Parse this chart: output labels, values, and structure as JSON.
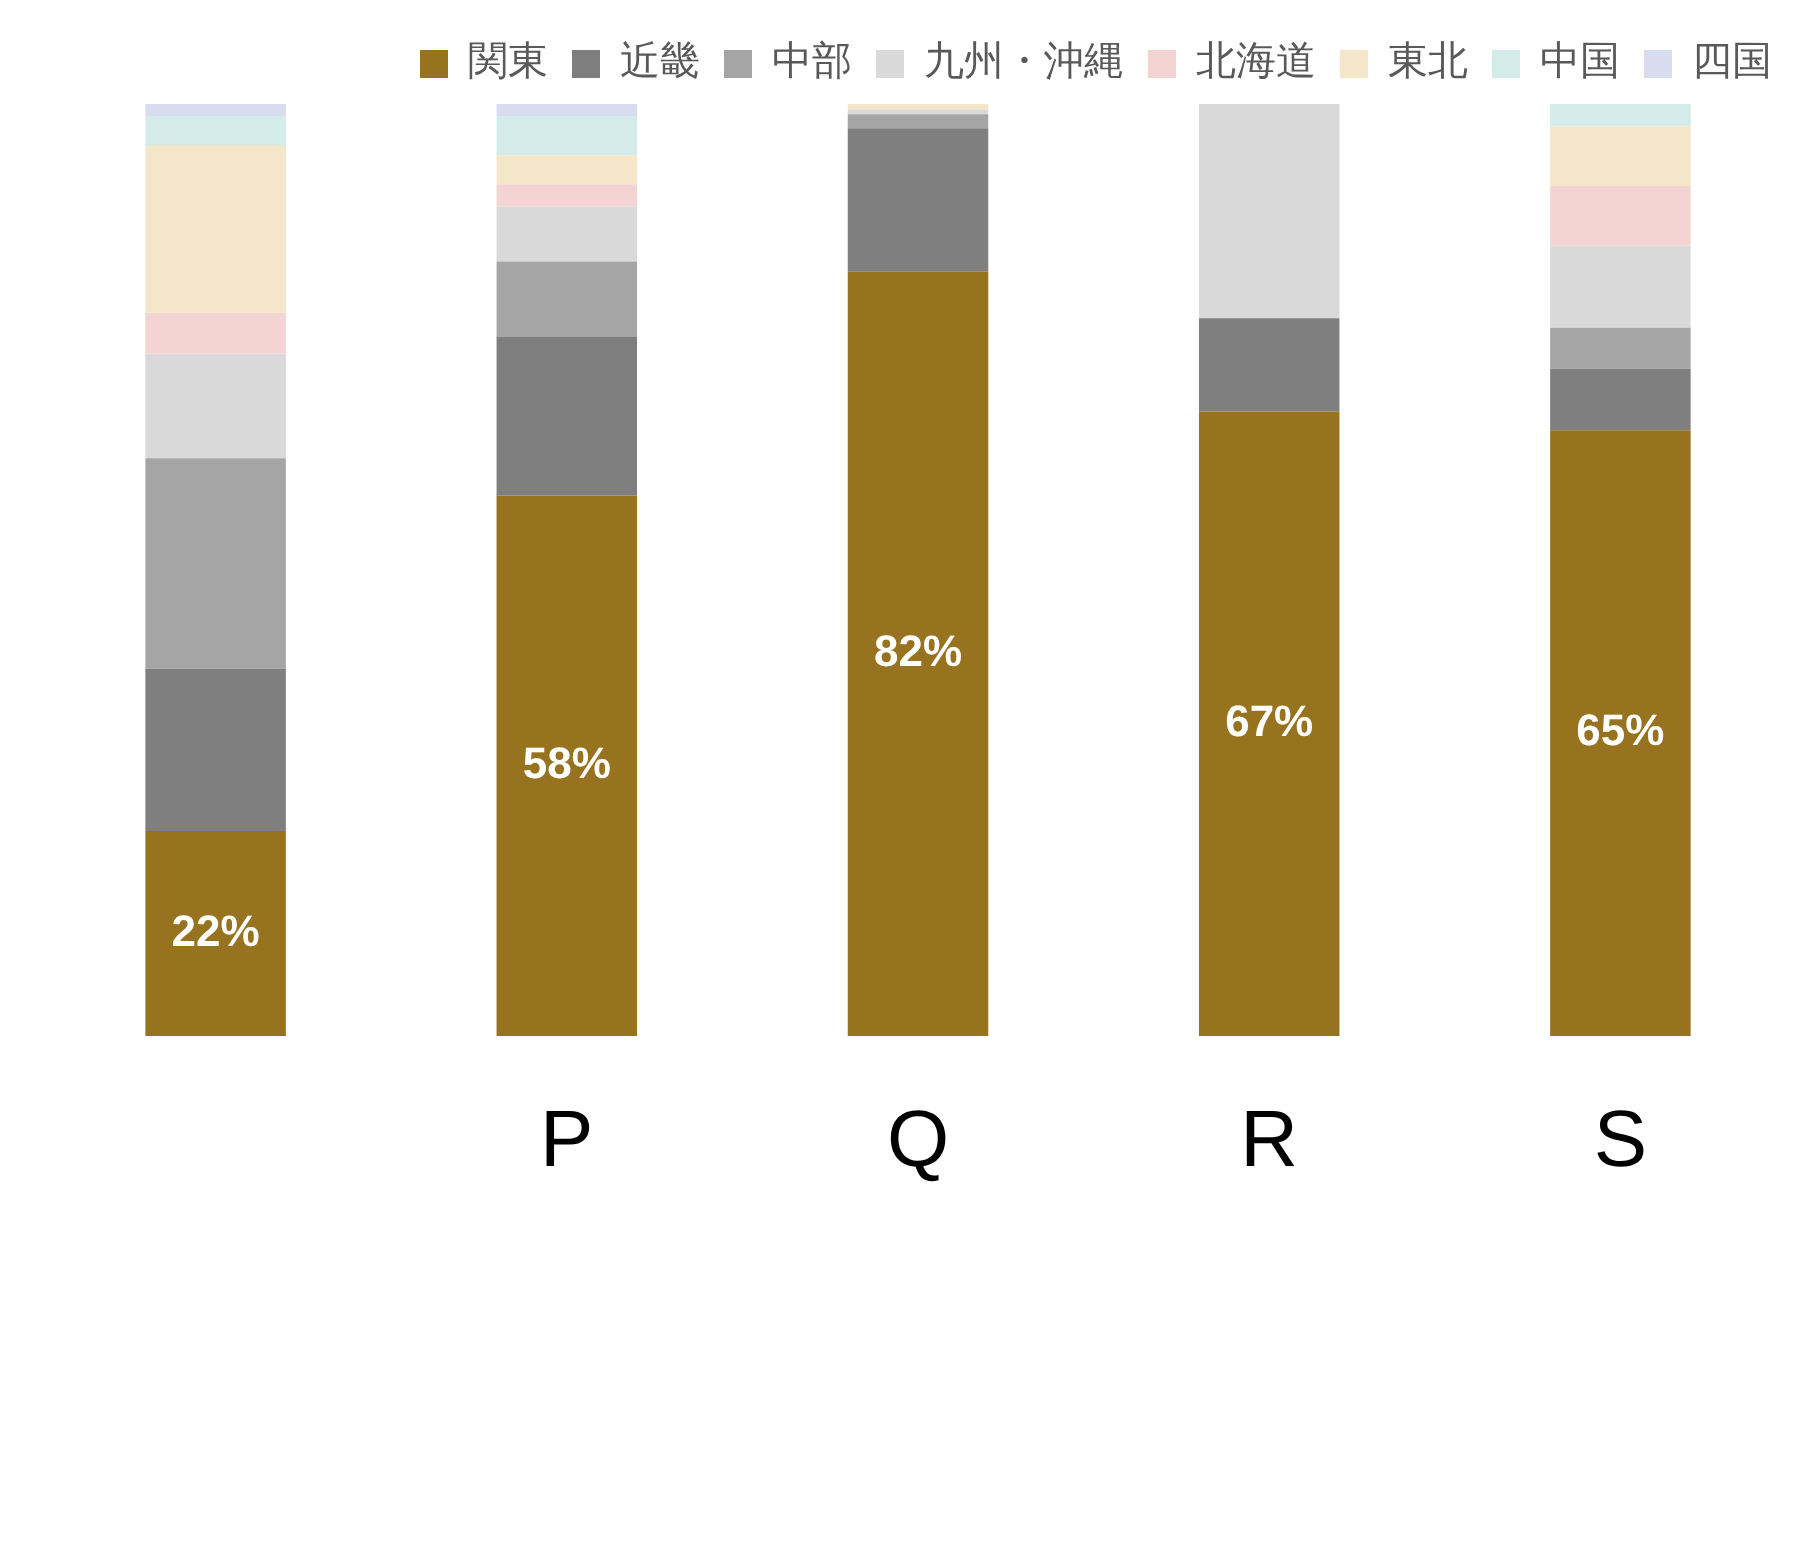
{
  "chart_data": {
    "type": "bar",
    "stacked": true,
    "categories": [
      null,
      "P",
      "Q",
      "R",
      "S"
    ],
    "ylim": [
      0,
      100
    ],
    "tick_labels": "x",
    "legend": "top right",
    "series": [
      {
        "name": "関東",
        "color": "#97721f",
        "values": [
          22,
          58,
          82,
          67,
          65
        ],
        "value_labels": [
          "22%",
          "58%",
          "82%",
          "67%",
          "65%"
        ]
      },
      {
        "name": "近畿",
        "color": "#7f7f7f",
        "values": [
          17.4,
          17,
          15.4,
          10,
          6.6
        ]
      },
      {
        "name": "中部",
        "color": "#a5a5a5",
        "values": [
          22.6,
          8.1,
          1.5,
          0,
          4.4
        ]
      },
      {
        "name": "九州・沖縄",
        "color": "#d9d9d9",
        "values": [
          11.2,
          5.9,
          0.5,
          23,
          8.8
        ]
      },
      {
        "name": "北海道",
        "color": "#f4d3d3",
        "values": [
          4.4,
          2.4,
          0,
          0,
          6.4
        ]
      },
      {
        "name": "東北",
        "color": "#f4e6c8",
        "values": [
          18,
          3.1,
          0.6,
          0,
          6.4
        ]
      },
      {
        "name": "中国",
        "color": "#d3ece9",
        "values": [
          3.1,
          4.2,
          0,
          0,
          2.4
        ]
      },
      {
        "name": "四国",
        "color": "#d9dcef",
        "values": [
          1.3,
          1.3,
          0,
          0,
          0
        ]
      }
    ]
  }
}
